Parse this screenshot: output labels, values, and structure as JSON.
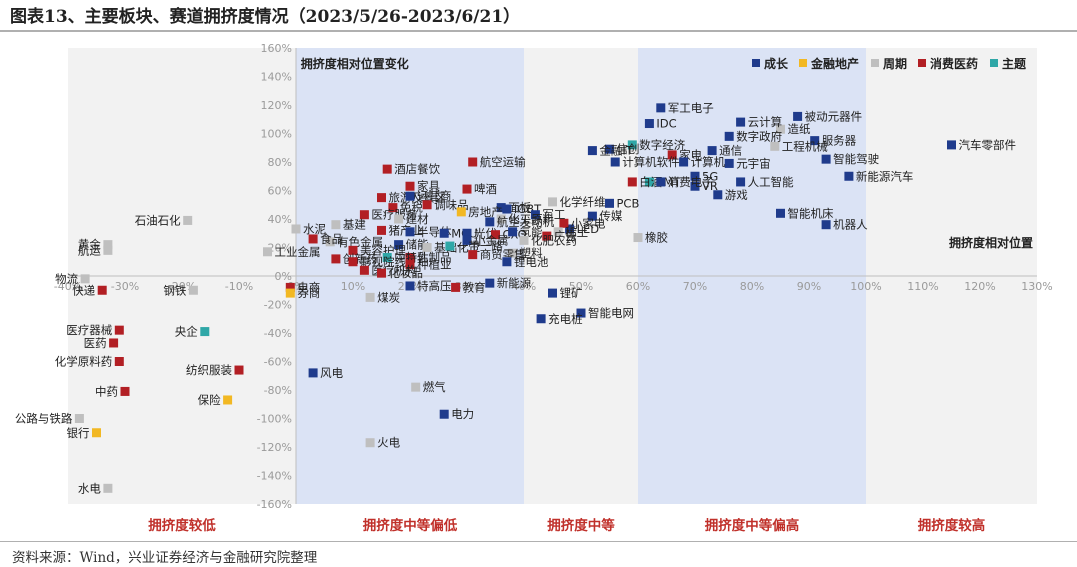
{
  "header": {
    "title": "图表13、主要板块、赛道拥挤度情况（2023/5/26-2023/6/21）"
  },
  "footer": {
    "source": "资料来源：Wind，兴业证券经济与金融研究院整理"
  },
  "colors": {
    "成长": "#1f3b8c",
    "金融地产": "#f2b823",
    "周期": "#bfbfbf",
    "消费医药": "#b21f24",
    "主题": "#2fa7a7",
    "band_fill": "#dbe3f5",
    "band_fill_light": "#f2f2f2",
    "zone_label": "#c0302a"
  },
  "chart_data": {
    "type": "scatter",
    "title": "",
    "xlabel": "拥挤度相对位置",
    "ylabel": "拥挤度相对位置变化",
    "xlim": [
      -40,
      130
    ],
    "ylim": [
      -160,
      160
    ],
    "x_ticks": [
      "-40%",
      "-30%",
      "-20%",
      "-10%",
      "0%",
      "10%",
      "20%",
      "30%",
      "40%",
      "50%",
      "60%",
      "70%",
      "80%",
      "90%",
      "100%",
      "110%",
      "120%",
      "130%"
    ],
    "y_ticks": [
      "160%",
      "140%",
      "120%",
      "100%",
      "80%",
      "60%",
      "40%",
      "20%",
      "0%",
      "-20%",
      "-40%",
      "-60%",
      "-80%",
      "-100%",
      "-120%",
      "-140%",
      "-160%"
    ],
    "grid": false,
    "legend_position": "top-right",
    "legend": [
      "成长",
      "金融地产",
      "周期",
      "消费医药",
      "主题"
    ],
    "bands": [
      {
        "from": -40,
        "to": 0,
        "label": "拥挤度较低",
        "shade": "light"
      },
      {
        "from": 0,
        "to": 40,
        "label": "拥挤度中等偏低",
        "shade": "blue"
      },
      {
        "from": 40,
        "to": 60,
        "label": "拥挤度中等",
        "shade": "light"
      },
      {
        "from": 60,
        "to": 100,
        "label": "拥挤度中等偏高",
        "shade": "blue"
      },
      {
        "from": 100,
        "to": 130,
        "label": "拥挤度较高",
        "shade": "light"
      }
    ],
    "points": [
      {
        "label": "汽车零部件",
        "group": "成长",
        "x": 115,
        "y": 92
      },
      {
        "label": "被动元器件",
        "group": "成长",
        "x": 88,
        "y": 112
      },
      {
        "label": "服务器",
        "group": "成长",
        "x": 91,
        "y": 95
      },
      {
        "label": "智能驾驶",
        "group": "成长",
        "x": 93,
        "y": 82
      },
      {
        "label": "新能源汽车",
        "group": "成长",
        "x": 97,
        "y": 70
      },
      {
        "label": "机器人",
        "group": "成长",
        "x": 93,
        "y": 36
      },
      {
        "label": "智能机床",
        "group": "成长",
        "x": 85,
        "y": 44
      },
      {
        "label": "造纸",
        "group": "周期",
        "x": 85,
        "y": 103
      },
      {
        "label": "工程机械",
        "group": "周期",
        "x": 84,
        "y": 91
      },
      {
        "label": "军工电子",
        "group": "成长",
        "x": 64,
        "y": 118
      },
      {
        "label": "IDC",
        "group": "成长",
        "x": 62,
        "y": 107
      },
      {
        "label": "云计算",
        "group": "成长",
        "x": 78,
        "y": 108
      },
      {
        "label": "数字政府",
        "group": "成长",
        "x": 76,
        "y": 98
      },
      {
        "label": "通信",
        "group": "成长",
        "x": 73,
        "y": 88
      },
      {
        "label": "家电",
        "group": "消费医药",
        "x": 66,
        "y": 85
      },
      {
        "label": "元宇宙",
        "group": "成长",
        "x": 76,
        "y": 79
      },
      {
        "label": "计算机",
        "group": "成长",
        "x": 68,
        "y": 80
      },
      {
        "label": "人工智能",
        "group": "成长",
        "x": 78,
        "y": 66
      },
      {
        "label": "5G",
        "group": "成长",
        "x": 70,
        "y": 70
      },
      {
        "label": "VR",
        "group": "成长",
        "x": 70,
        "y": 63
      },
      {
        "label": "游戏",
        "group": "成长",
        "x": 74,
        "y": 57
      },
      {
        "label": "数字经济",
        "group": "主题",
        "x": 59,
        "y": 92
      },
      {
        "label": "信创",
        "group": "成长",
        "x": 55,
        "y": 89
      },
      {
        "label": "金融IT",
        "group": "成长",
        "x": 52,
        "y": 88
      },
      {
        "label": "计算机软件",
        "group": "成长",
        "x": 56,
        "y": 80
      },
      {
        "label": "TMT",
        "group": "主题",
        "x": 62,
        "y": 66
      },
      {
        "label": "白酒",
        "group": "消费医药",
        "x": 59,
        "y": 66
      },
      {
        "label": "消费电子",
        "group": "成长",
        "x": 64,
        "y": 66
      },
      {
        "label": "PCB",
        "group": "成长",
        "x": 55,
        "y": 51
      },
      {
        "label": "传媒",
        "group": "成长",
        "x": 52,
        "y": 42
      },
      {
        "label": "LED",
        "group": "成长",
        "x": 48,
        "y": 33
      },
      {
        "label": "橡胶",
        "group": "周期",
        "x": 60,
        "y": 27
      },
      {
        "label": "化学纤维",
        "group": "周期",
        "x": 45,
        "y": 52
      },
      {
        "label": "小家电",
        "group": "消费医药",
        "x": 47,
        "y": 37
      },
      {
        "label": "稀土",
        "group": "周期",
        "x": 46,
        "y": 31
      },
      {
        "label": "广告",
        "group": "消费医药",
        "x": 44,
        "y": 28
      },
      {
        "label": "锂矿",
        "group": "成长",
        "x": 45,
        "y": -12
      },
      {
        "label": "智能电网",
        "group": "成长",
        "x": 50,
        "y": -26
      },
      {
        "label": "充电桩",
        "group": "成长",
        "x": 43,
        "y": -30
      },
      {
        "label": "航空运输",
        "group": "消费医药",
        "x": 31,
        "y": 80
      },
      {
        "label": "酒店餐饮",
        "group": "消费医药",
        "x": 16,
        "y": 75
      },
      {
        "label": "啤酒",
        "group": "消费医药",
        "x": 30,
        "y": 61
      },
      {
        "label": "家具",
        "group": "消费医药",
        "x": 20,
        "y": 63
      },
      {
        "label": "面板",
        "group": "成长",
        "x": 36,
        "y": 48
      },
      {
        "label": "IGBT",
        "group": "成长",
        "x": 37,
        "y": 47
      },
      {
        "label": "军工",
        "group": "成长",
        "x": 42,
        "y": 43
      },
      {
        "label": "化工原料",
        "group": "周期",
        "x": 36,
        "y": 40
      },
      {
        "label": "航空发动机",
        "group": "成长",
        "x": 34,
        "y": 38
      },
      {
        "label": "旅游及景区",
        "group": "消费医药",
        "x": 15,
        "y": 55
      },
      {
        "label": "运营商",
        "group": "成长",
        "x": 20,
        "y": 56
      },
      {
        "label": "调味品",
        "group": "消费医药",
        "x": 23,
        "y": 50
      },
      {
        "label": "免税",
        "group": "消费医药",
        "x": 17,
        "y": 48
      },
      {
        "label": "医疗服务",
        "group": "消费医药",
        "x": 12,
        "y": 43
      },
      {
        "label": "建材",
        "group": "周期",
        "x": 18,
        "y": 40
      },
      {
        "label": "房地产",
        "group": "金融地产",
        "x": 29,
        "y": 45
      },
      {
        "label": "基建",
        "group": "周期",
        "x": 7,
        "y": 36
      },
      {
        "label": "猪产业",
        "group": "消费医药",
        "x": 15,
        "y": 32
      },
      {
        "label": "半导体",
        "group": "成长",
        "x": 20,
        "y": 31
      },
      {
        "label": "MCU",
        "group": "成长",
        "x": 26,
        "y": 30
      },
      {
        "label": "光伏",
        "group": "成长",
        "x": 30,
        "y": 30
      },
      {
        "label": "CXO",
        "group": "消费医药",
        "x": 35,
        "y": 29
      },
      {
        "label": "氢能",
        "group": "成长",
        "x": 38,
        "y": 31
      },
      {
        "label": "水泥",
        "group": "周期",
        "x": 0,
        "y": 33
      },
      {
        "label": "有色金属",
        "group": "周期",
        "x": 6,
        "y": 24
      },
      {
        "label": "食品",
        "group": "消费医药",
        "x": 3,
        "y": 26
      },
      {
        "label": "储能",
        "group": "成长",
        "x": 18,
        "y": 22
      },
      {
        "label": "基础化工",
        "group": "周期",
        "x": 23,
        "y": 20
      },
      {
        "label": "小金属",
        "group": "成长",
        "x": 30,
        "y": 25
      },
      {
        "label": "化肥农药",
        "group": "周期",
        "x": 40,
        "y": 25
      },
      {
        "label": "美容护理",
        "group": "消费医药",
        "x": 10,
        "y": 18
      },
      {
        "label": "乳制品",
        "group": "消费医药",
        "x": 20,
        "y": 13
      },
      {
        "label": "中特估",
        "group": "主题",
        "x": 16,
        "y": 13
      },
      {
        "label": "一带一路",
        "group": "主题",
        "x": 27,
        "y": 21
      },
      {
        "label": "塑料",
        "group": "周期",
        "x": 38,
        "y": 16
      },
      {
        "label": "商贸零售",
        "group": "消费医药",
        "x": 31,
        "y": 15
      },
      {
        "label": "锂电池",
        "group": "成长",
        "x": 37,
        "y": 10
      },
      {
        "label": "创新药",
        "group": "消费医药",
        "x": 7,
        "y": 12
      },
      {
        "label": "影视院线",
        "group": "消费医药",
        "x": 10,
        "y": 10
      },
      {
        "label": "种植业",
        "group": "消费医药",
        "x": 20,
        "y": 8
      },
      {
        "label": "医疗机构",
        "group": "消费医药",
        "x": 12,
        "y": 4
      },
      {
        "label": "化妆品",
        "group": "消费医药",
        "x": 15,
        "y": 2
      },
      {
        "label": "新能源",
        "group": "成长",
        "x": 34,
        "y": -5
      },
      {
        "label": "特高压",
        "group": "成长",
        "x": 20,
        "y": -7
      },
      {
        "label": "教育",
        "group": "消费医药",
        "x": 28,
        "y": -8
      },
      {
        "label": "煤炭",
        "group": "周期",
        "x": 13,
        "y": -15
      },
      {
        "label": "电商",
        "group": "消费医药",
        "x": -1,
        "y": -8
      },
      {
        "label": "券商",
        "group": "金融地产",
        "x": -1,
        "y": -12
      },
      {
        "label": "风电",
        "group": "成长",
        "x": 3,
        "y": -68
      },
      {
        "label": "燃气",
        "group": "周期",
        "x": 21,
        "y": -78
      },
      {
        "label": "电力",
        "group": "成长",
        "x": 26,
        "y": -97
      },
      {
        "label": "火电",
        "group": "周期",
        "x": 13,
        "y": -117
      },
      {
        "label": "石油石化",
        "group": "周期",
        "x": -19,
        "y": 39
      },
      {
        "label": "黄金",
        "group": "周期",
        "x": -33,
        "y": 22
      },
      {
        "label": "航运",
        "group": "周期",
        "x": -33,
        "y": 18
      },
      {
        "label": "工业金属",
        "group": "周期",
        "x": -5,
        "y": 17
      },
      {
        "label": "物流",
        "group": "周期",
        "x": -37,
        "y": -2
      },
      {
        "label": "快递",
        "group": "消费医药",
        "x": -34,
        "y": -10
      },
      {
        "label": "钢铁",
        "group": "周期",
        "x": -18,
        "y": -10
      },
      {
        "label": "医疗器械",
        "group": "消费医药",
        "x": -31,
        "y": -38
      },
      {
        "label": "医药",
        "group": "消费医药",
        "x": -32,
        "y": -47
      },
      {
        "label": "央企",
        "group": "主题",
        "x": -16,
        "y": -39
      },
      {
        "label": "化学原料药",
        "group": "消费医药",
        "x": -31,
        "y": -60
      },
      {
        "label": "纺织服装",
        "group": "消费医药",
        "x": -10,
        "y": -66
      },
      {
        "label": "保险",
        "group": "金融地产",
        "x": -12,
        "y": -87
      },
      {
        "label": "中药",
        "group": "消费医药",
        "x": -30,
        "y": -81
      },
      {
        "label": "公路与铁路",
        "group": "周期",
        "x": -38,
        "y": -100
      },
      {
        "label": "银行",
        "group": "金融地产",
        "x": -35,
        "y": -110
      },
      {
        "label": "水电",
        "group": "周期",
        "x": -33,
        "y": -149
      }
    ]
  }
}
